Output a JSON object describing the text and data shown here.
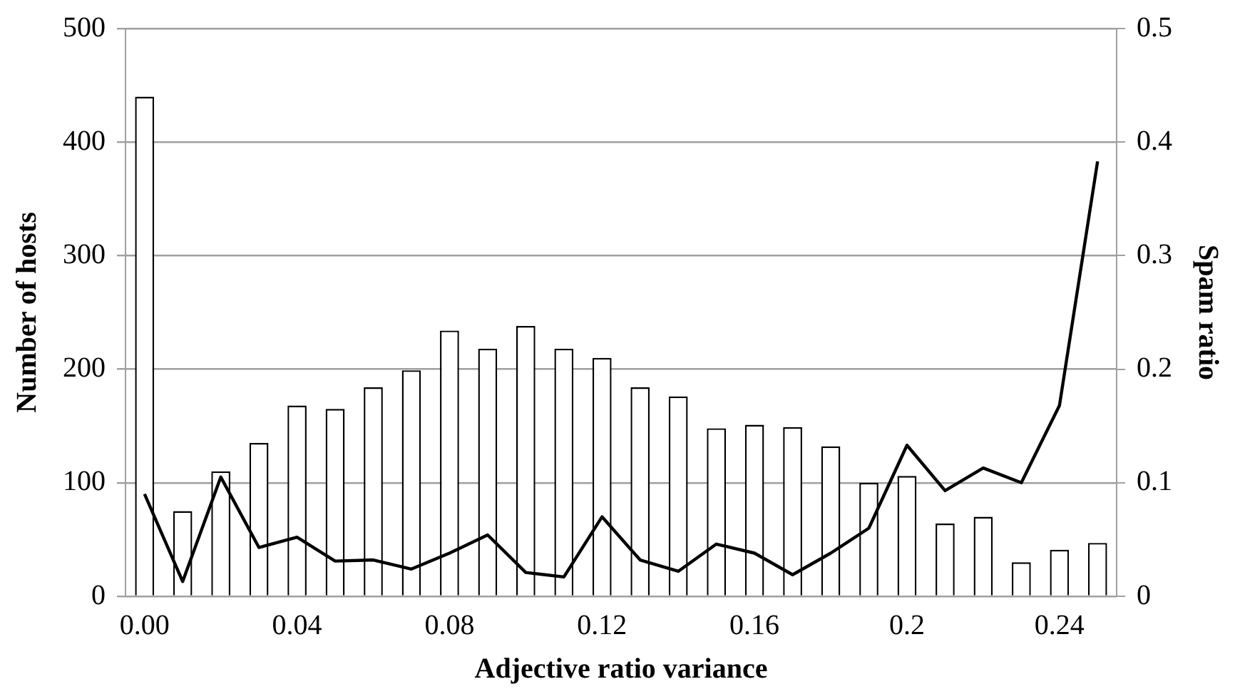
{
  "chart_data": {
    "type": "bar",
    "xlabel": "Adjective ratio variance",
    "ylabel": "Number of hosts",
    "y2label": "Spam ratio",
    "categories": [
      "0.00",
      null,
      null,
      null,
      "0.04",
      null,
      null,
      null,
      "0.08",
      null,
      null,
      null,
      "0.12",
      null,
      null,
      null,
      "0.16",
      null,
      null,
      null,
      "0.2",
      null,
      null,
      null,
      "0.24",
      null
    ],
    "series": [
      {
        "color": "#ffffff",
        "values": [
          440,
          75,
          110,
          135,
          168,
          165,
          184,
          199,
          234,
          218,
          238,
          218,
          210,
          184,
          176,
          148,
          151,
          149,
          132,
          100,
          106,
          64,
          70,
          30,
          41,
          47
        ]
      },
      {
        "type": "line",
        "axis": "y2",
        "color": "#000000",
        "values": [
          0.09,
          0.013,
          0.105,
          0.043,
          0.052,
          0.031,
          0.032,
          0.024,
          0.038,
          0.054,
          0.021,
          0.017,
          0.07,
          0.032,
          0.022,
          0.046,
          0.038,
          0.019,
          0.038,
          0.06,
          0.133,
          0.093,
          0.113,
          0.1,
          0.168,
          0.383
        ]
      }
    ],
    "ylim": [
      0,
      500
    ],
    "yticks": [
      0,
      100,
      200,
      300,
      400,
      500
    ],
    "y2lim": [
      0,
      0.5
    ],
    "y2ticks": [
      0,
      0.1,
      0.2,
      0.3,
      0.4,
      0.5
    ],
    "grid": "y",
    "legend": false,
    "marker": "none",
    "line_style": "solid"
  }
}
